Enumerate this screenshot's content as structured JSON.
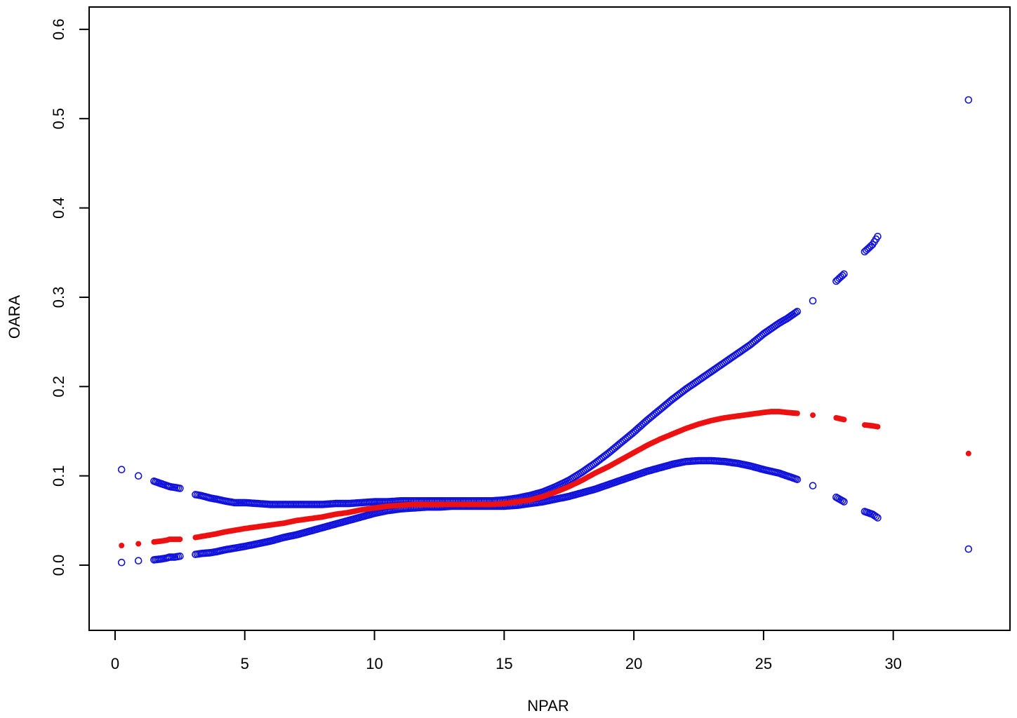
{
  "chart_data": {
    "type": "scatter",
    "title": "",
    "xlabel": "NPAR",
    "ylabel": "OARA",
    "xlim": [
      -1,
      34.5
    ],
    "ylim": [
      -0.073,
      0.625
    ],
    "x_ticks": [
      0,
      5,
      10,
      15,
      20,
      25,
      30
    ],
    "y_ticks": [
      0.0,
      0.1,
      0.2,
      0.3,
      0.4,
      0.5,
      0.6
    ],
    "x_tick_labels": [
      "0",
      "5",
      "10",
      "15",
      "20",
      "25",
      "30"
    ],
    "y_tick_labels": [
      "0.0",
      "0.1",
      "0.2",
      "0.3",
      "0.4",
      "0.5",
      "0.6"
    ],
    "grid": false,
    "colors": {
      "fit": "#ee1111",
      "ci": "#1111dd"
    },
    "series": [
      {
        "role": "fit",
        "marker": "filled-circle",
        "points": [
          [
            0.25,
            0.022
          ],
          [
            0.9,
            0.024
          ],
          [
            1.5,
            0.026
          ],
          [
            1.8,
            0.027
          ],
          [
            2.0,
            0.028
          ],
          [
            2.1,
            0.029
          ],
          [
            2.3,
            0.029
          ],
          [
            2.5,
            0.029
          ],
          [
            3.1,
            0.031
          ],
          [
            3.3,
            0.032
          ],
          [
            3.7,
            0.034
          ],
          [
            3.9,
            0.035
          ],
          [
            4.2,
            0.037
          ],
          [
            4.6,
            0.039
          ],
          [
            4.8,
            0.04
          ],
          [
            5.0,
            0.041
          ],
          [
            5.5,
            0.043
          ],
          [
            6.0,
            0.045
          ],
          [
            6.5,
            0.047
          ],
          [
            7.0,
            0.05
          ],
          [
            7.5,
            0.052
          ],
          [
            8.0,
            0.054
          ],
          [
            8.5,
            0.057
          ],
          [
            9.0,
            0.059
          ],
          [
            9.5,
            0.062
          ],
          [
            10.0,
            0.064
          ],
          [
            10.5,
            0.066
          ],
          [
            11.0,
            0.067
          ],
          [
            11.5,
            0.068
          ],
          [
            12.0,
            0.068
          ],
          [
            12.5,
            0.068
          ],
          [
            13.0,
            0.068
          ],
          [
            13.5,
            0.068
          ],
          [
            14.0,
            0.068
          ],
          [
            14.5,
            0.068
          ],
          [
            15.0,
            0.069
          ],
          [
            15.5,
            0.071
          ],
          [
            16.0,
            0.073
          ],
          [
            16.5,
            0.077
          ],
          [
            17.0,
            0.082
          ],
          [
            17.5,
            0.088
          ],
          [
            18.0,
            0.095
          ],
          [
            18.5,
            0.103
          ],
          [
            19.0,
            0.11
          ],
          [
            19.5,
            0.118
          ],
          [
            20.0,
            0.126
          ],
          [
            20.5,
            0.134
          ],
          [
            21.0,
            0.141
          ],
          [
            21.5,
            0.147
          ],
          [
            22.0,
            0.153
          ],
          [
            22.5,
            0.158
          ],
          [
            23.0,
            0.162
          ],
          [
            23.5,
            0.165
          ],
          [
            24.0,
            0.167
          ],
          [
            24.5,
            0.169
          ],
          [
            25.0,
            0.171
          ],
          [
            25.3,
            0.172
          ],
          [
            25.6,
            0.172
          ],
          [
            25.9,
            0.171
          ],
          [
            26.3,
            0.17
          ],
          [
            26.9,
            0.168
          ],
          [
            27.8,
            0.165
          ],
          [
            28.1,
            0.163
          ],
          [
            28.9,
            0.157
          ],
          [
            29.2,
            0.156
          ],
          [
            29.4,
            0.155
          ],
          [
            32.9,
            0.125
          ]
        ]
      },
      {
        "role": "upper-ci",
        "marker": "open-circle",
        "points": [
          [
            0.25,
            0.107
          ],
          [
            0.9,
            0.1
          ],
          [
            1.5,
            0.094
          ],
          [
            1.8,
            0.091
          ],
          [
            2.0,
            0.089
          ],
          [
            2.1,
            0.088
          ],
          [
            2.3,
            0.087
          ],
          [
            2.5,
            0.086
          ],
          [
            3.1,
            0.079
          ],
          [
            3.3,
            0.078
          ],
          [
            3.7,
            0.075
          ],
          [
            3.9,
            0.074
          ],
          [
            4.2,
            0.072
          ],
          [
            4.6,
            0.07
          ],
          [
            4.8,
            0.07
          ],
          [
            5.0,
            0.07
          ],
          [
            5.5,
            0.069
          ],
          [
            6.0,
            0.068
          ],
          [
            6.5,
            0.068
          ],
          [
            7.0,
            0.068
          ],
          [
            7.5,
            0.068
          ],
          [
            8.0,
            0.068
          ],
          [
            8.5,
            0.069
          ],
          [
            9.0,
            0.069
          ],
          [
            9.5,
            0.07
          ],
          [
            10.0,
            0.071
          ],
          [
            10.5,
            0.071
          ],
          [
            11.0,
            0.072
          ],
          [
            11.5,
            0.072
          ],
          [
            12.0,
            0.072
          ],
          [
            12.5,
            0.072
          ],
          [
            13.0,
            0.072
          ],
          [
            13.5,
            0.072
          ],
          [
            14.0,
            0.072
          ],
          [
            14.5,
            0.072
          ],
          [
            15.0,
            0.073
          ],
          [
            15.5,
            0.075
          ],
          [
            16.0,
            0.078
          ],
          [
            16.5,
            0.082
          ],
          [
            17.0,
            0.088
          ],
          [
            17.5,
            0.095
          ],
          [
            18.0,
            0.104
          ],
          [
            18.5,
            0.114
          ],
          [
            19.0,
            0.125
          ],
          [
            19.5,
            0.137
          ],
          [
            20.0,
            0.149
          ],
          [
            20.5,
            0.162
          ],
          [
            21.0,
            0.174
          ],
          [
            21.5,
            0.186
          ],
          [
            22.0,
            0.197
          ],
          [
            22.5,
            0.207
          ],
          [
            23.0,
            0.217
          ],
          [
            23.5,
            0.227
          ],
          [
            24.0,
            0.237
          ],
          [
            24.5,
            0.247
          ],
          [
            25.0,
            0.259
          ],
          [
            25.3,
            0.265
          ],
          [
            25.6,
            0.271
          ],
          [
            25.9,
            0.276
          ],
          [
            26.3,
            0.284
          ],
          [
            26.9,
            0.296
          ],
          [
            27.8,
            0.318
          ],
          [
            28.1,
            0.326
          ],
          [
            28.9,
            0.351
          ],
          [
            29.2,
            0.359
          ],
          [
            29.4,
            0.368
          ],
          [
            32.9,
            0.521
          ]
        ]
      },
      {
        "role": "lower-ci",
        "marker": "open-circle",
        "points": [
          [
            0.25,
            0.003
          ],
          [
            0.9,
            0.005
          ],
          [
            1.5,
            0.006
          ],
          [
            1.8,
            0.007
          ],
          [
            2.0,
            0.008
          ],
          [
            2.1,
            0.009
          ],
          [
            2.3,
            0.009
          ],
          [
            2.5,
            0.01
          ],
          [
            3.1,
            0.012
          ],
          [
            3.3,
            0.013
          ],
          [
            3.7,
            0.014
          ],
          [
            3.9,
            0.015
          ],
          [
            4.2,
            0.017
          ],
          [
            4.6,
            0.019
          ],
          [
            4.8,
            0.02
          ],
          [
            5.0,
            0.021
          ],
          [
            5.5,
            0.024
          ],
          [
            6.0,
            0.027
          ],
          [
            6.5,
            0.031
          ],
          [
            7.0,
            0.034
          ],
          [
            7.5,
            0.038
          ],
          [
            8.0,
            0.042
          ],
          [
            8.5,
            0.046
          ],
          [
            9.0,
            0.05
          ],
          [
            9.5,
            0.054
          ],
          [
            10.0,
            0.058
          ],
          [
            10.5,
            0.061
          ],
          [
            11.0,
            0.063
          ],
          [
            11.5,
            0.064
          ],
          [
            12.0,
            0.065
          ],
          [
            12.5,
            0.065
          ],
          [
            13.0,
            0.066
          ],
          [
            13.5,
            0.066
          ],
          [
            14.0,
            0.066
          ],
          [
            14.5,
            0.066
          ],
          [
            15.0,
            0.066
          ],
          [
            15.5,
            0.067
          ],
          [
            16.0,
            0.069
          ],
          [
            16.5,
            0.071
          ],
          [
            17.0,
            0.074
          ],
          [
            17.5,
            0.077
          ],
          [
            18.0,
            0.081
          ],
          [
            18.5,
            0.085
          ],
          [
            19.0,
            0.09
          ],
          [
            19.5,
            0.095
          ],
          [
            20.0,
            0.1
          ],
          [
            20.5,
            0.105
          ],
          [
            21.0,
            0.109
          ],
          [
            21.5,
            0.113
          ],
          [
            22.0,
            0.116
          ],
          [
            22.5,
            0.117
          ],
          [
            23.0,
            0.117
          ],
          [
            23.5,
            0.116
          ],
          [
            24.0,
            0.114
          ],
          [
            24.5,
            0.111
          ],
          [
            25.0,
            0.107
          ],
          [
            25.3,
            0.105
          ],
          [
            25.6,
            0.103
          ],
          [
            25.9,
            0.1
          ],
          [
            26.3,
            0.096
          ],
          [
            26.9,
            0.089
          ],
          [
            27.8,
            0.076
          ],
          [
            28.1,
            0.071
          ],
          [
            28.9,
            0.06
          ],
          [
            29.2,
            0.057
          ],
          [
            29.4,
            0.053
          ],
          [
            32.9,
            0.018
          ]
        ]
      }
    ]
  }
}
